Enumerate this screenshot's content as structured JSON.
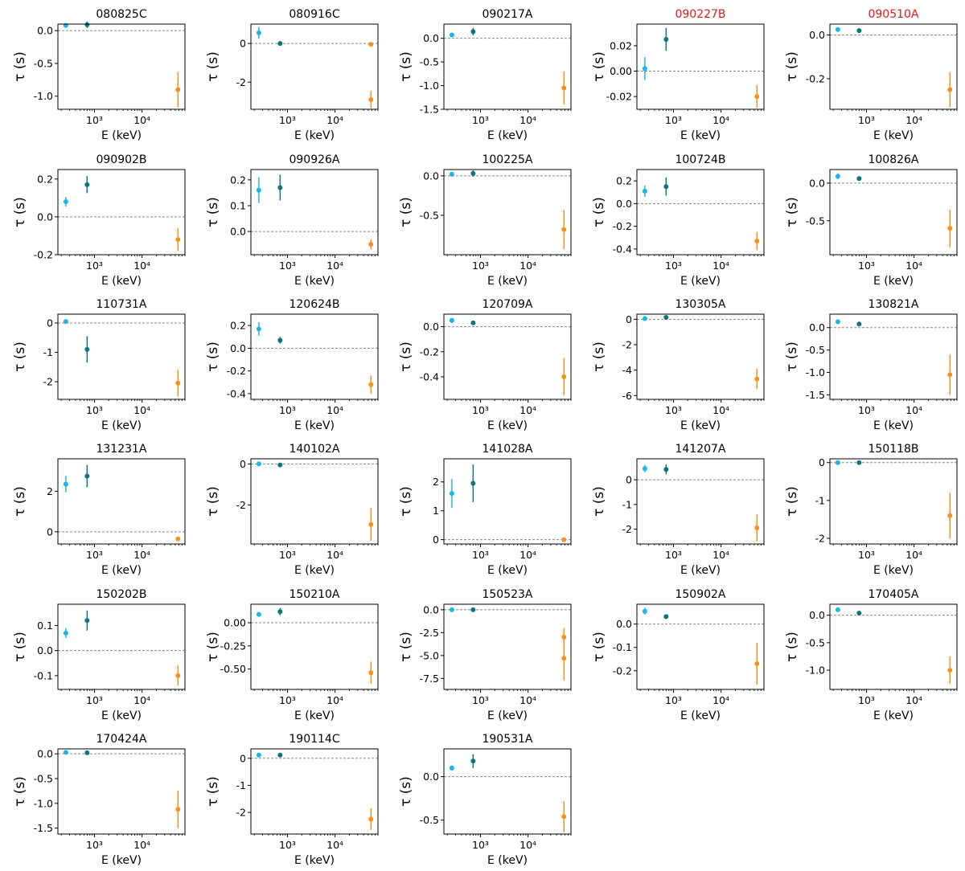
{
  "shared": {
    "xlabel": "E (keV)",
    "ylabel": "τ (s)",
    "xscale": "log",
    "xlim": [
      170,
      80000
    ],
    "xticks": [
      {
        "value": 1000,
        "label": "10³"
      },
      {
        "value": 10000,
        "label": "10⁴"
      }
    ],
    "zero_line": "dashed",
    "marker_x": [
      250,
      700,
      57000
    ],
    "colors": {
      "point1": "#1ab6ea",
      "point2": "#0a7878",
      "point3": "#f5911e",
      "title": "#000000",
      "highlight_title": "#e41a1c"
    }
  },
  "chart_data": [
    {
      "type": "scatter",
      "title": "080825C",
      "highlight": false,
      "ylim": [
        -1.2,
        0.1
      ],
      "yticks": [
        {
          "value": 0,
          "label": "0.0"
        },
        {
          "value": -0.5,
          "label": "-0.5"
        },
        {
          "value": -1,
          "label": "-1.0"
        }
      ],
      "points": [
        {
          "x": 250,
          "y": 0.08,
          "err": 0.02
        },
        {
          "x": 700,
          "y": 0.09,
          "err": 0.05
        },
        {
          "x": 57000,
          "y": -0.9,
          "err": 0.27
        }
      ]
    },
    {
      "type": "scatter",
      "title": "080916C",
      "highlight": false,
      "ylim": [
        -3.4,
        1.0
      ],
      "yticks": [
        {
          "value": 0,
          "label": "0"
        },
        {
          "value": -2,
          "label": "-2"
        }
      ],
      "points": [
        {
          "x": 250,
          "y": 0.55,
          "err": 0.3
        },
        {
          "x": 700,
          "y": 0.0,
          "err": 0.1
        },
        {
          "x": 57000,
          "y": -0.05,
          "err": 0.1
        },
        {
          "x": 57000,
          "y": -2.9,
          "err": 0.45
        }
      ]
    },
    {
      "type": "scatter",
      "title": "090217A",
      "highlight": false,
      "ylim": [
        -1.5,
        0.3
      ],
      "yticks": [
        {
          "value": 0,
          "label": "0.0"
        },
        {
          "value": -0.5,
          "label": "-0.5"
        },
        {
          "value": -1,
          "label": "-1.0"
        },
        {
          "value": -1.5,
          "label": "-1.5"
        }
      ],
      "points": [
        {
          "x": 250,
          "y": 0.07,
          "err": 0.04
        },
        {
          "x": 700,
          "y": 0.14,
          "err": 0.08
        },
        {
          "x": 57000,
          "y": -1.05,
          "err": 0.35
        }
      ]
    },
    {
      "type": "scatter",
      "title": "090227B",
      "highlight": true,
      "ylim": [
        -0.03,
        0.037
      ],
      "yticks": [
        {
          "value": 0.02,
          "label": "0.02"
        },
        {
          "value": 0,
          "label": "0.00"
        },
        {
          "value": -0.02,
          "label": "-0.02"
        }
      ],
      "points": [
        {
          "x": 250,
          "y": 0.002,
          "err": 0.009
        },
        {
          "x": 700,
          "y": 0.025,
          "err": 0.009
        },
        {
          "x": 57000,
          "y": -0.02,
          "err": 0.009
        }
      ]
    },
    {
      "type": "scatter",
      "title": "090510A",
      "highlight": true,
      "ylim": [
        -0.34,
        0.05
      ],
      "yticks": [
        {
          "value": 0,
          "label": "0.0"
        },
        {
          "value": -0.2,
          "label": "-0.2"
        }
      ],
      "points": [
        {
          "x": 250,
          "y": 0.025,
          "err": 0.01
        },
        {
          "x": 700,
          "y": 0.02,
          "err": 0.01
        },
        {
          "x": 57000,
          "y": -0.25,
          "err": 0.08
        }
      ]
    },
    {
      "type": "scatter",
      "title": "090902B",
      "highlight": false,
      "ylim": [
        -0.2,
        0.25
      ],
      "yticks": [
        {
          "value": 0.2,
          "label": "0.2"
        },
        {
          "value": 0,
          "label": "0.0"
        },
        {
          "value": -0.2,
          "label": "-0.2"
        }
      ],
      "points": [
        {
          "x": 250,
          "y": 0.08,
          "err": 0.025
        },
        {
          "x": 700,
          "y": 0.17,
          "err": 0.045
        },
        {
          "x": 57000,
          "y": -0.12,
          "err": 0.06
        }
      ]
    },
    {
      "type": "scatter",
      "title": "090926A",
      "highlight": false,
      "ylim": [
        -0.09,
        0.24
      ],
      "yticks": [
        {
          "value": 0.2,
          "label": "0.2"
        },
        {
          "value": 0.1,
          "label": "0.1"
        },
        {
          "value": 0,
          "label": "0.0"
        }
      ],
      "points": [
        {
          "x": 250,
          "y": 0.16,
          "err": 0.05
        },
        {
          "x": 700,
          "y": 0.17,
          "err": 0.05
        },
        {
          "x": 57000,
          "y": -0.05,
          "err": 0.02
        }
      ]
    },
    {
      "type": "scatter",
      "title": "100225A",
      "highlight": false,
      "ylim": [
        -1.0,
        0.08
      ],
      "yticks": [
        {
          "value": 0,
          "label": "0.0"
        },
        {
          "value": -0.5,
          "label": "-0.5"
        }
      ],
      "points": [
        {
          "x": 250,
          "y": 0.02,
          "err": 0.02
        },
        {
          "x": 700,
          "y": 0.03,
          "err": 0.04
        },
        {
          "x": 57000,
          "y": -0.68,
          "err": 0.25
        }
      ]
    },
    {
      "type": "scatter",
      "title": "100724B",
      "highlight": false,
      "ylim": [
        -0.45,
        0.3
      ],
      "yticks": [
        {
          "value": 0.2,
          "label": "0.2"
        },
        {
          "value": 0,
          "label": "0.0"
        },
        {
          "value": -0.2,
          "label": "-0.2"
        },
        {
          "value": -0.4,
          "label": "-0.4"
        }
      ],
      "points": [
        {
          "x": 250,
          "y": 0.11,
          "err": 0.05
        },
        {
          "x": 700,
          "y": 0.15,
          "err": 0.08
        },
        {
          "x": 57000,
          "y": -0.33,
          "err": 0.08
        }
      ]
    },
    {
      "type": "scatter",
      "title": "100826A",
      "highlight": false,
      "ylim": [
        -0.95,
        0.18
      ],
      "yticks": [
        {
          "value": 0,
          "label": "0.0"
        },
        {
          "value": -0.5,
          "label": "-0.5"
        }
      ],
      "points": [
        {
          "x": 250,
          "y": 0.09,
          "err": 0.04
        },
        {
          "x": 700,
          "y": 0.06,
          "err": 0.03
        },
        {
          "x": 57000,
          "y": -0.6,
          "err": 0.25
        }
      ]
    },
    {
      "type": "scatter",
      "title": "110731A",
      "highlight": false,
      "ylim": [
        -2.6,
        0.3
      ],
      "yticks": [
        {
          "value": 0,
          "label": "0"
        },
        {
          "value": -1,
          "label": "-1"
        },
        {
          "value": -2,
          "label": "-2"
        }
      ],
      "points": [
        {
          "x": 250,
          "y": 0.05,
          "err": 0.05
        },
        {
          "x": 700,
          "y": -0.9,
          "err": 0.45
        },
        {
          "x": 57000,
          "y": -2.05,
          "err": 0.45
        }
      ]
    },
    {
      "type": "scatter",
      "title": "120624B",
      "highlight": false,
      "ylim": [
        -0.45,
        0.3
      ],
      "yticks": [
        {
          "value": 0.2,
          "label": "0.2"
        },
        {
          "value": 0,
          "label": "0.0"
        },
        {
          "value": -0.2,
          "label": "-0.2"
        },
        {
          "value": -0.4,
          "label": "-0.4"
        }
      ],
      "points": [
        {
          "x": 250,
          "y": 0.17,
          "err": 0.06
        },
        {
          "x": 700,
          "y": 0.07,
          "err": 0.03
        },
        {
          "x": 57000,
          "y": -0.32,
          "err": 0.08
        }
      ]
    },
    {
      "type": "scatter",
      "title": "120709A",
      "highlight": false,
      "ylim": [
        -0.58,
        0.1
      ],
      "yticks": [
        {
          "value": 0,
          "label": "0.0"
        },
        {
          "value": -0.2,
          "label": "-0.2"
        },
        {
          "value": -0.4,
          "label": "-0.4"
        }
      ],
      "points": [
        {
          "x": 250,
          "y": 0.05,
          "err": 0.02
        },
        {
          "x": 700,
          "y": 0.03,
          "err": 0.01
        },
        {
          "x": 57000,
          "y": -0.4,
          "err": 0.15
        }
      ]
    },
    {
      "type": "scatter",
      "title": "130305A",
      "highlight": false,
      "ylim": [
        -6.3,
        0.4
      ],
      "yticks": [
        {
          "value": 0,
          "label": "0"
        },
        {
          "value": -2,
          "label": "-2"
        },
        {
          "value": -4,
          "label": "-4"
        },
        {
          "value": -6,
          "label": "-6"
        }
      ],
      "points": [
        {
          "x": 250,
          "y": 0.05,
          "err": 0.1
        },
        {
          "x": 700,
          "y": 0.15,
          "err": 0.1
        },
        {
          "x": 57000,
          "y": -4.7,
          "err": 0.8
        }
      ]
    },
    {
      "type": "scatter",
      "title": "130821A",
      "highlight": false,
      "ylim": [
        -1.6,
        0.3
      ],
      "yticks": [
        {
          "value": 0,
          "label": "0.0"
        },
        {
          "value": -0.5,
          "label": "-0.5"
        },
        {
          "value": -1,
          "label": "-1.0"
        },
        {
          "value": -1.5,
          "label": "-1.5"
        }
      ],
      "points": [
        {
          "x": 250,
          "y": 0.13,
          "err": 0.05
        },
        {
          "x": 700,
          "y": 0.08,
          "err": 0.04
        },
        {
          "x": 57000,
          "y": -1.05,
          "err": 0.45
        }
      ]
    },
    {
      "type": "scatter",
      "title": "131231A",
      "highlight": false,
      "ylim": [
        -0.6,
        3.6
      ],
      "yticks": [
        {
          "value": 2,
          "label": "2"
        },
        {
          "value": 0,
          "label": "0"
        }
      ],
      "points": [
        {
          "x": 250,
          "y": 2.35,
          "err": 0.4
        },
        {
          "x": 700,
          "y": 2.75,
          "err": 0.55
        },
        {
          "x": 57000,
          "y": -0.35,
          "err": 0.08
        }
      ]
    },
    {
      "type": "scatter",
      "title": "140102A",
      "highlight": false,
      "ylim": [
        -3.9,
        0.25
      ],
      "yticks": [
        {
          "value": 0,
          "label": "0"
        },
        {
          "value": -2,
          "label": "-2"
        }
      ],
      "points": [
        {
          "x": 250,
          "y": 0.0,
          "err": 0.1
        },
        {
          "x": 700,
          "y": -0.05,
          "err": 0.08
        },
        {
          "x": 57000,
          "y": -2.95,
          "err": 0.8
        }
      ]
    },
    {
      "type": "scatter",
      "title": "141028A",
      "highlight": false,
      "ylim": [
        -0.15,
        2.8
      ],
      "yticks": [
        {
          "value": 2,
          "label": "2"
        },
        {
          "value": 1,
          "label": "1"
        },
        {
          "value": 0,
          "label": "0"
        }
      ],
      "points": [
        {
          "x": 250,
          "y": 1.6,
          "err": 0.5
        },
        {
          "x": 700,
          "y": 1.95,
          "err": 0.65
        },
        {
          "x": 57000,
          "y": 0.0,
          "err": 0.03
        }
      ]
    },
    {
      "type": "scatter",
      "title": "141207A",
      "highlight": false,
      "ylim": [
        -2.6,
        0.85
      ],
      "yticks": [
        {
          "value": 0,
          "label": "0"
        },
        {
          "value": -1,
          "label": "-1"
        },
        {
          "value": -2,
          "label": "-2"
        }
      ],
      "points": [
        {
          "x": 250,
          "y": 0.45,
          "err": 0.15
        },
        {
          "x": 700,
          "y": 0.42,
          "err": 0.2
        },
        {
          "x": 57000,
          "y": -1.95,
          "err": 0.55
        }
      ]
    },
    {
      "type": "scatter",
      "title": "150118B",
      "highlight": false,
      "ylim": [
        -2.15,
        0.1
      ],
      "yticks": [
        {
          "value": 0,
          "label": "0"
        },
        {
          "value": -1,
          "label": "-1"
        },
        {
          "value": -2,
          "label": "-2"
        }
      ],
      "points": [
        {
          "x": 250,
          "y": 0.0,
          "err": 0.03
        },
        {
          "x": 700,
          "y": 0.0,
          "err": 0.03
        },
        {
          "x": 57000,
          "y": -1.4,
          "err": 0.6
        }
      ]
    },
    {
      "type": "scatter",
      "title": "150202B",
      "highlight": false,
      "ylim": [
        -0.155,
        0.185
      ],
      "yticks": [
        {
          "value": 0.1,
          "label": "0.1"
        },
        {
          "value": 0,
          "label": "0.0"
        },
        {
          "value": -0.1,
          "label": "-0.1"
        }
      ],
      "points": [
        {
          "x": 250,
          "y": 0.07,
          "err": 0.02
        },
        {
          "x": 700,
          "y": 0.12,
          "err": 0.04
        },
        {
          "x": 57000,
          "y": -0.1,
          "err": 0.04
        }
      ]
    },
    {
      "type": "scatter",
      "title": "150210A",
      "highlight": false,
      "ylim": [
        -0.72,
        0.2
      ],
      "yticks": [
        {
          "value": 0,
          "label": "0.00"
        },
        {
          "value": -0.25,
          "label": "-0.25"
        },
        {
          "value": -0.5,
          "label": "-0.50"
        }
      ],
      "points": [
        {
          "x": 250,
          "y": 0.09,
          "err": 0.02
        },
        {
          "x": 700,
          "y": 0.12,
          "err": 0.04
        },
        {
          "x": 57000,
          "y": -0.54,
          "err": 0.12
        }
      ]
    },
    {
      "type": "scatter",
      "title": "150523A",
      "highlight": false,
      "ylim": [
        -8.7,
        0.6
      ],
      "yticks": [
        {
          "value": 0,
          "label": "0.0"
        },
        {
          "value": -2.5,
          "label": "-2.5"
        },
        {
          "value": -5,
          "label": "-5.0"
        },
        {
          "value": -7.5,
          "label": "-7.5"
        }
      ],
      "points": [
        {
          "x": 250,
          "y": 0.0,
          "err": 0.1
        },
        {
          "x": 700,
          "y": 0.0,
          "err": 0.1
        },
        {
          "x": 57000,
          "y": -3.0,
          "err": 1.0
        },
        {
          "x": 57000,
          "y": -5.3,
          "err": 2.4
        }
      ]
    },
    {
      "type": "scatter",
      "title": "150902A",
      "highlight": false,
      "ylim": [
        -0.28,
        0.085
      ],
      "yticks": [
        {
          "value": 0,
          "label": "0.0"
        },
        {
          "value": -0.1,
          "label": "-0.1"
        },
        {
          "value": -0.2,
          "label": "-0.2"
        }
      ],
      "points": [
        {
          "x": 250,
          "y": 0.055,
          "err": 0.015
        },
        {
          "x": 700,
          "y": 0.032,
          "err": 0.007
        },
        {
          "x": 57000,
          "y": -0.17,
          "err": 0.09
        }
      ]
    },
    {
      "type": "scatter",
      "title": "170405A",
      "highlight": false,
      "ylim": [
        -1.35,
        0.2
      ],
      "yticks": [
        {
          "value": 0,
          "label": "0.0"
        },
        {
          "value": -0.5,
          "label": "-0.5"
        },
        {
          "value": -1,
          "label": "-1.0"
        }
      ],
      "points": [
        {
          "x": 250,
          "y": 0.1,
          "err": 0.04
        },
        {
          "x": 700,
          "y": 0.04,
          "err": 0.02
        },
        {
          "x": 57000,
          "y": -1.0,
          "err": 0.25
        }
      ]
    },
    {
      "type": "scatter",
      "title": "170424A",
      "highlight": false,
      "ylim": [
        -1.62,
        0.1
      ],
      "yticks": [
        {
          "value": 0,
          "label": "0.0"
        },
        {
          "value": -0.5,
          "label": "-0.5"
        },
        {
          "value": -1,
          "label": "-1.0"
        },
        {
          "value": -1.5,
          "label": "-1.5"
        }
      ],
      "points": [
        {
          "x": 250,
          "y": 0.03,
          "err": 0.02
        },
        {
          "x": 700,
          "y": 0.02,
          "err": 0.02
        },
        {
          "x": 57000,
          "y": -1.12,
          "err": 0.38
        }
      ]
    },
    {
      "type": "scatter",
      "title": "190114C",
      "highlight": false,
      "ylim": [
        -2.8,
        0.35
      ],
      "yticks": [
        {
          "value": 0,
          "label": "0"
        },
        {
          "value": -1,
          "label": "-1"
        },
        {
          "value": -2,
          "label": "-2"
        }
      ],
      "points": [
        {
          "x": 250,
          "y": 0.12,
          "err": 0.05
        },
        {
          "x": 700,
          "y": 0.12,
          "err": 0.05
        },
        {
          "x": 57000,
          "y": -2.25,
          "err": 0.4
        }
      ]
    },
    {
      "type": "scatter",
      "title": "190531A",
      "highlight": false,
      "ylim": [
        -0.66,
        0.32
      ],
      "yticks": [
        {
          "value": 0,
          "label": "0.0"
        },
        {
          "value": -0.5,
          "label": "-0.5"
        }
      ],
      "points": [
        {
          "x": 250,
          "y": 0.1,
          "err": 0.03
        },
        {
          "x": 700,
          "y": 0.18,
          "err": 0.08
        },
        {
          "x": 57000,
          "y": -0.46,
          "err": 0.18
        }
      ]
    }
  ]
}
